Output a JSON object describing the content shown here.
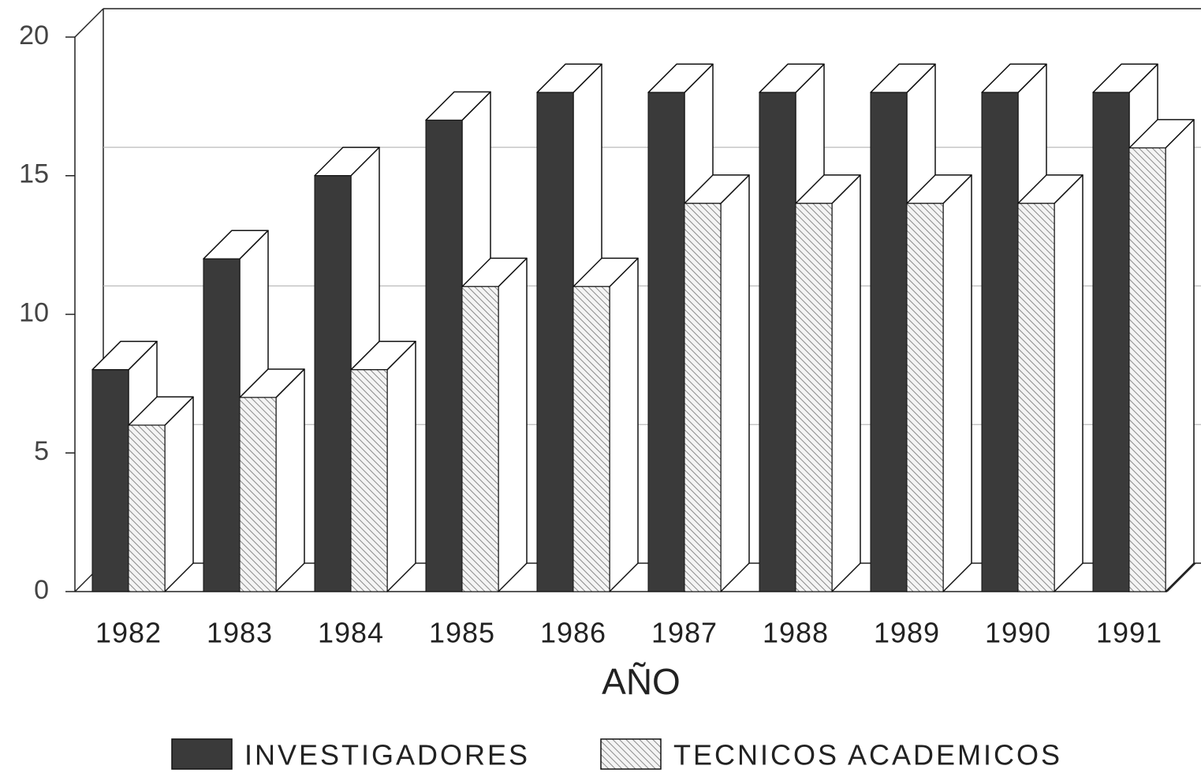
{
  "chart_data": {
    "type": "bar3d",
    "xlabel": "AÑO",
    "categories": [
      "1982",
      "1983",
      "1984",
      "1985",
      "1986",
      "1987",
      "1988",
      "1989",
      "1990",
      "1991"
    ],
    "series": [
      {
        "name": "INVESTIGADORES",
        "color": "#3a3a3a",
        "fill": "solid",
        "values": [
          8,
          12,
          15,
          17,
          18,
          18,
          18,
          18,
          18,
          18
        ]
      },
      {
        "name": "TECNICOS ACADEMICOS",
        "color": "#8a8a8a",
        "fill": "hatch",
        "values": [
          6,
          7,
          8,
          11,
          11,
          14,
          14,
          14,
          14,
          16
        ]
      }
    ],
    "ylim": [
      0,
      20
    ],
    "yticks": [
      0,
      5,
      10,
      15,
      20
    ],
    "grid": true,
    "legend": "bottom"
  }
}
